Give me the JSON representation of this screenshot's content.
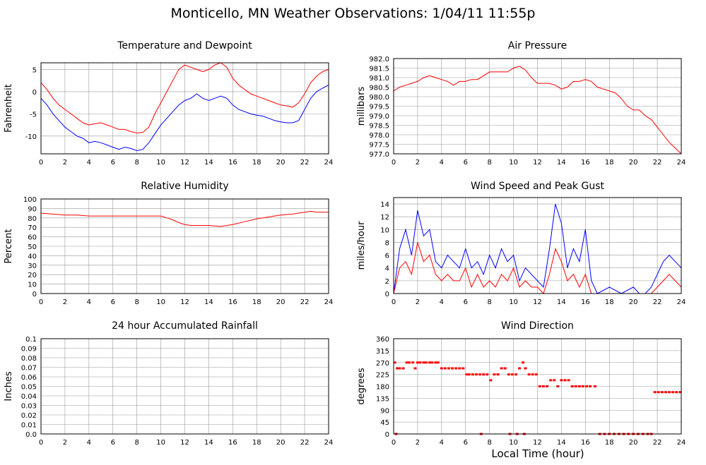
{
  "page": {
    "title": "Monticello, MN Weather Observations: 1/04/11 11:55p",
    "xlabel": "Local Time (hour)"
  },
  "colors": {
    "primary": "#ff0000",
    "secondary": "#0000ff",
    "grid": "#999999"
  },
  "chart_data": [
    {
      "id": "temp",
      "type": "line",
      "title": "Temperature and Dewpoint",
      "ylabel": "Fahrenheit",
      "xlim": [
        0,
        24
      ],
      "ylim": [
        -14,
        6.5
      ],
      "xticks": [
        0,
        2,
        4,
        6,
        8,
        10,
        12,
        14,
        16,
        18,
        20,
        22,
        24
      ],
      "yticks": [
        -10,
        -5,
        0,
        5
      ],
      "ytick_labels": [
        "-10",
        "-5",
        "0",
        "5"
      ],
      "grid": true,
      "series": [
        {
          "color": "#ff0000",
          "x": [
            0,
            0.5,
            1,
            1.5,
            2,
            2.5,
            3,
            3.5,
            4,
            4.5,
            5,
            5.5,
            6,
            6.5,
            7,
            7.5,
            8,
            8.5,
            9,
            9.5,
            10,
            10.5,
            11,
            11.5,
            12,
            12.5,
            13,
            13.5,
            14,
            14.5,
            15,
            15.5,
            16,
            16.5,
            17,
            17.5,
            18,
            18.5,
            19,
            19.5,
            20,
            20.5,
            21,
            21.5,
            22,
            22.5,
            23,
            23.5,
            24
          ],
          "y": [
            2,
            0.5,
            -1.5,
            -3,
            -4,
            -5,
            -6,
            -7,
            -7.5,
            -7.2,
            -7,
            -7.5,
            -8,
            -8.5,
            -8.5,
            -9,
            -9.3,
            -9.2,
            -8,
            -5,
            -2.5,
            0,
            2.5,
            5,
            6,
            5.5,
            5,
            4.5,
            5,
            6,
            6.5,
            5.5,
            3,
            1.5,
            0.5,
            -0.5,
            -1,
            -1.5,
            -2,
            -2.5,
            -3,
            -3.2,
            -3.5,
            -2.5,
            -0.5,
            2,
            3.5,
            4.5,
            5
          ]
        },
        {
          "color": "#0000ff",
          "x": [
            0,
            0.5,
            1,
            1.5,
            2,
            2.5,
            3,
            3.5,
            4,
            4.5,
            5,
            5.5,
            6,
            6.5,
            7,
            7.5,
            8,
            8.5,
            9,
            9.5,
            10,
            10.5,
            11,
            11.5,
            12,
            12.5,
            13,
            13.5,
            14,
            14.5,
            15,
            15.5,
            16,
            16.5,
            17,
            17.5,
            18,
            18.5,
            19,
            19.5,
            20,
            20.5,
            21,
            21.5,
            22,
            22.5,
            23,
            23.5,
            24
          ],
          "y": [
            -1.5,
            -3,
            -5,
            -6.5,
            -8,
            -9,
            -10,
            -10.5,
            -11.5,
            -11.2,
            -11.5,
            -12,
            -12.5,
            -13,
            -12.5,
            -12.8,
            -13.3,
            -13,
            -11.5,
            -9.5,
            -7.5,
            -6,
            -4.5,
            -3,
            -2,
            -1.5,
            -0.5,
            -1.5,
            -2,
            -1.5,
            -1,
            -1.5,
            -3,
            -4,
            -4.5,
            -5,
            -5.3,
            -5.5,
            -6,
            -6.5,
            -6.8,
            -7,
            -7,
            -6.5,
            -4,
            -1.5,
            0,
            0.8,
            1.5
          ]
        }
      ]
    },
    {
      "id": "pressure",
      "type": "line",
      "title": "Air Pressure",
      "ylabel": "millibars",
      "xlim": [
        0,
        24
      ],
      "ylim": [
        977.0,
        982.0
      ],
      "xticks": [
        0,
        2,
        4,
        6,
        8,
        10,
        12,
        14,
        16,
        18,
        20,
        22,
        24
      ],
      "yticks": [
        977.0,
        977.5,
        978.0,
        978.5,
        979.0,
        979.5,
        980.0,
        980.5,
        981.0,
        981.5,
        982.0
      ],
      "ytick_labels": [
        "977.0",
        "977.5",
        "978.0",
        "978.5",
        "979.0",
        "979.5",
        "980.0",
        "980.5",
        "981.0",
        "981.5",
        "982.0"
      ],
      "grid": true,
      "series": [
        {
          "color": "#ff0000",
          "x": [
            0,
            0.5,
            1,
            1.5,
            2,
            2.5,
            3,
            3.5,
            4,
            4.5,
            5,
            5.5,
            6,
            6.5,
            7,
            7.5,
            8,
            8.5,
            9,
            9.5,
            10,
            10.5,
            11,
            11.5,
            12,
            12.5,
            13,
            13.5,
            14,
            14.5,
            15,
            15.5,
            16,
            16.5,
            17,
            17.5,
            18,
            18.5,
            19,
            19.5,
            20,
            20.5,
            21,
            21.5,
            22,
            22.5,
            23,
            23.5,
            24
          ],
          "y": [
            980.3,
            980.5,
            980.6,
            980.7,
            980.8,
            981.0,
            981.1,
            981.0,
            980.9,
            980.8,
            980.6,
            980.8,
            980.8,
            980.9,
            980.9,
            981.1,
            981.3,
            981.3,
            981.3,
            981.3,
            981.5,
            981.6,
            981.4,
            981.0,
            980.7,
            980.7,
            980.7,
            980.6,
            980.4,
            980.5,
            980.8,
            980.8,
            980.9,
            980.8,
            980.5,
            980.4,
            980.3,
            980.2,
            979.9,
            979.5,
            979.3,
            979.3,
            979.0,
            978.8,
            978.4,
            978.0,
            977.6,
            977.3,
            977.0
          ]
        }
      ]
    },
    {
      "id": "humidity",
      "type": "line",
      "title": "Relative Humidity",
      "ylabel": "Percent",
      "xlim": [
        0,
        24
      ],
      "ylim": [
        0,
        100
      ],
      "xticks": [
        0,
        2,
        4,
        6,
        8,
        10,
        12,
        14,
        16,
        18,
        20,
        22,
        24
      ],
      "yticks": [
        0,
        10,
        20,
        30,
        40,
        50,
        60,
        70,
        80,
        90,
        100
      ],
      "ytick_labels": [
        "0",
        "10",
        "20",
        "30",
        "40",
        "50",
        "60",
        "70",
        "80",
        "90",
        "100"
      ],
      "grid": true,
      "series": [
        {
          "color": "#ff0000",
          "x": [
            0,
            1,
            2,
            3,
            4,
            5,
            6,
            7,
            8,
            9,
            10,
            10.5,
            11,
            11.5,
            12,
            12.5,
            13,
            14,
            15,
            16,
            17,
            18,
            19,
            20,
            21,
            22,
            22.5,
            23,
            24
          ],
          "y": [
            85,
            84,
            83,
            83,
            82,
            82,
            82,
            82,
            82,
            82,
            82,
            80,
            78,
            75,
            73,
            72,
            72,
            72,
            71,
            73,
            76,
            79,
            81,
            83,
            84,
            86,
            87,
            86,
            86
          ]
        }
      ]
    },
    {
      "id": "wind",
      "type": "line",
      "title": "Wind Speed and Peak Gust",
      "ylabel": "miles/hour",
      "xlim": [
        0,
        24
      ],
      "ylim": [
        0,
        15
      ],
      "xticks": [
        0,
        2,
        4,
        6,
        8,
        10,
        12,
        14,
        16,
        18,
        20,
        22,
        24
      ],
      "yticks": [
        0,
        2,
        4,
        6,
        8,
        10,
        12,
        14
      ],
      "ytick_labels": [
        "0",
        "2",
        "4",
        "6",
        "8",
        "10",
        "12",
        "14"
      ],
      "grid": true,
      "series": [
        {
          "color": "#0000ff",
          "x": [
            0,
            0.5,
            1,
            1.5,
            2,
            2.5,
            3,
            3.5,
            4,
            4.5,
            5,
            5.5,
            6,
            6.5,
            7,
            7.5,
            8,
            8.5,
            9,
            9.5,
            10,
            10.5,
            11,
            11.5,
            12,
            12.5,
            13,
            13.5,
            14,
            14.5,
            15,
            15.5,
            16,
            16.5,
            17,
            18,
            19,
            20,
            20.5,
            21,
            21.5,
            22,
            22.5,
            23,
            23.5,
            24
          ],
          "y": [
            0,
            7,
            10,
            6,
            13,
            9,
            10,
            5,
            4,
            6,
            5,
            4,
            7,
            4,
            5,
            3,
            6,
            4,
            7,
            5,
            6,
            2,
            4,
            3,
            2,
            1,
            7,
            14,
            11,
            4,
            7,
            5,
            10,
            2,
            0,
            1,
            0,
            1,
            0,
            0,
            1,
            3,
            5,
            6,
            5,
            4
          ]
        },
        {
          "color": "#ff0000",
          "x": [
            0,
            0.5,
            1,
            1.5,
            2,
            2.5,
            3,
            3.5,
            4,
            4.5,
            5,
            5.5,
            6,
            6.5,
            7,
            7.5,
            8,
            8.5,
            9,
            9.5,
            10,
            10.5,
            11,
            11.5,
            12,
            12.5,
            13,
            13.5,
            14,
            14.5,
            15,
            15.5,
            16,
            16.5,
            17,
            18,
            19,
            20,
            20.5,
            21,
            21.5,
            22,
            22.5,
            23,
            23.5,
            24
          ],
          "y": [
            0,
            4,
            5,
            3,
            8,
            5,
            6,
            3,
            2,
            3,
            2,
            2,
            4,
            1,
            3,
            1,
            2,
            1,
            3,
            2,
            4,
            1,
            2,
            1,
            1,
            0,
            3,
            7,
            5,
            2,
            3,
            1,
            3,
            0,
            0,
            0,
            0,
            0,
            0,
            0,
            0,
            1,
            2,
            3,
            2,
            1
          ]
        }
      ]
    },
    {
      "id": "rain",
      "type": "line",
      "title": "24 hour Accumulated Rainfall",
      "ylabel": "Inches",
      "xlim": [
        0,
        24
      ],
      "ylim": [
        0,
        0.1
      ],
      "xticks": [
        0,
        2,
        4,
        6,
        8,
        10,
        12,
        14,
        16,
        18,
        20,
        22,
        24
      ],
      "yticks": [
        0,
        0.01,
        0.02,
        0.03,
        0.04,
        0.05,
        0.06,
        0.07,
        0.08,
        0.09,
        0.1
      ],
      "ytick_labels": [
        "0.0",
        "0.01",
        "0.02",
        "0.03",
        "0.04",
        "0.05",
        "0.06",
        "0.07",
        "0.08",
        "0.09",
        "0.1"
      ],
      "grid": true,
      "series": [
        {
          "color": "#ff0000",
          "x": [
            0,
            24
          ],
          "y": [
            0,
            0
          ]
        }
      ]
    },
    {
      "id": "direction",
      "type": "scatter",
      "title": "Wind Direction",
      "ylabel": "degrees",
      "xlim": [
        0,
        24
      ],
      "ylim": [
        0,
        360
      ],
      "xticks": [
        0,
        2,
        4,
        6,
        8,
        10,
        12,
        14,
        16,
        18,
        20,
        22,
        24
      ],
      "yticks": [
        0,
        45,
        90,
        135,
        180,
        225,
        270,
        315,
        360
      ],
      "ytick_labels": [
        "0",
        "45",
        "90",
        "135",
        "180",
        "225",
        "270",
        "315",
        "360"
      ],
      "grid": true,
      "series": [
        {
          "color": "#ff0000",
          "x": [
            0.1,
            0.3,
            0.5,
            0.8,
            1.1,
            1.3,
            1.6,
            1.8,
            2.0,
            2.2,
            2.5,
            2.7,
            3.0,
            3.2,
            3.5,
            3.7,
            4.0,
            4.3,
            4.6,
            4.9,
            5.2,
            5.5,
            5.8,
            6.1,
            6.3,
            6.6,
            6.9,
            7.2,
            7.5,
            7.8,
            8.1,
            8.4,
            8.7,
            9.0,
            9.3,
            9.6,
            9.9,
            10.2,
            10.5,
            10.8,
            11.0,
            11.3,
            11.6,
            11.9,
            12.2,
            12.5,
            12.8,
            13.1,
            13.4,
            13.7,
            14.0,
            14.3,
            14.6,
            14.9,
            15.2,
            15.5,
            15.8,
            16.1,
            16.4,
            16.8,
            17.2,
            17.6,
            18.0,
            18.4,
            18.8,
            19.2,
            19.6,
            20.0,
            20.4,
            20.8,
            21.2,
            21.5,
            21.8,
            22.1,
            22.4,
            22.7,
            23.0,
            23.3,
            23.6,
            23.9,
            0.2,
            7.3,
            9.7,
            10.3,
            10.9
          ],
          "y": [
            270,
            248,
            248,
            248,
            270,
            270,
            270,
            248,
            270,
            270,
            270,
            270,
            270,
            270,
            270,
            270,
            248,
            248,
            248,
            248,
            248,
            248,
            248,
            225,
            225,
            225,
            225,
            225,
            225,
            225,
            203,
            225,
            225,
            248,
            248,
            225,
            225,
            225,
            248,
            270,
            248,
            225,
            225,
            225,
            180,
            180,
            180,
            203,
            203,
            180,
            203,
            203,
            203,
            180,
            180,
            180,
            180,
            180,
            180,
            180,
            0,
            0,
            0,
            0,
            0,
            0,
            0,
            0,
            0,
            0,
            0,
            0,
            158,
            158,
            158,
            158,
            158,
            158,
            158,
            158,
            0,
            0,
            0,
            0,
            0
          ]
        }
      ]
    }
  ]
}
